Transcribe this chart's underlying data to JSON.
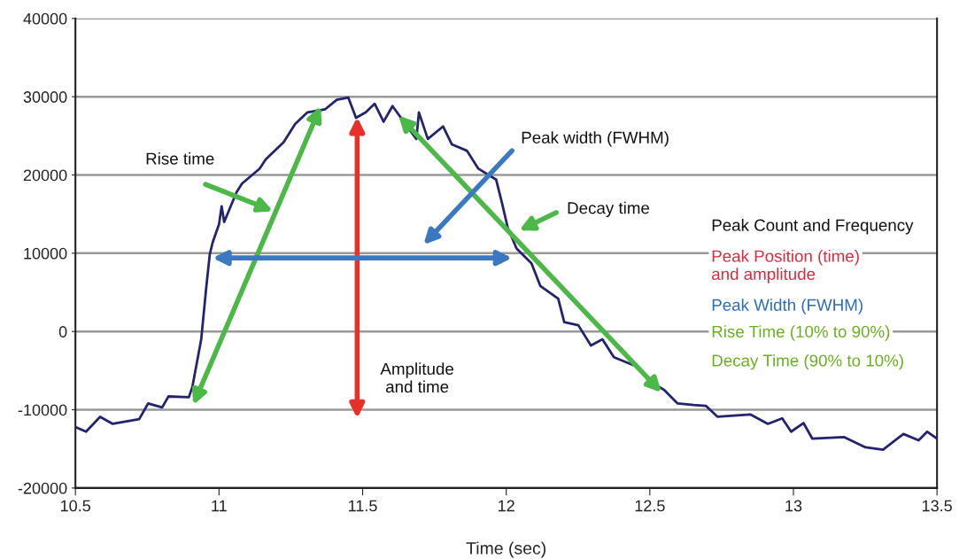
{
  "chart_data": {
    "type": "line",
    "xlabel": "Time (sec)",
    "x": [
      10.5,
      10.537,
      10.586,
      10.63,
      10.722,
      10.753,
      10.802,
      10.824,
      10.895,
      10.907,
      10.938,
      10.956,
      10.968,
      10.978,
      11.0,
      11.009,
      11.018,
      11.061,
      11.08,
      11.141,
      11.163,
      11.225,
      11.265,
      11.308,
      11.37,
      11.41,
      11.45,
      11.477,
      11.511,
      11.542,
      11.573,
      11.604,
      11.687,
      11.696,
      11.727,
      11.78,
      11.811,
      11.863,
      11.903,
      11.965,
      11.986,
      12.005,
      12.036,
      12.088,
      12.119,
      12.181,
      12.202,
      12.251,
      12.295,
      12.335,
      12.375,
      12.449,
      12.498,
      12.551,
      12.597,
      12.652,
      12.695,
      12.736,
      12.85,
      12.911,
      12.961,
      12.992,
      13.035,
      13.066,
      13.177,
      13.251,
      13.312,
      13.383,
      13.436,
      13.466,
      13.5
    ],
    "series": [
      {
        "color": "#23236e",
        "values": [
          -12200,
          -12800,
          -10900,
          -11800,
          -11200,
          -9200,
          -9700,
          -8300,
          -8400,
          -7100,
          -1000,
          5800,
          9900,
          11400,
          13700,
          16000,
          14000,
          17800,
          18900,
          20800,
          22000,
          24200,
          26500,
          28000,
          28400,
          29600,
          29900,
          27300,
          28000,
          29100,
          26800,
          28800,
          24600,
          28000,
          24600,
          26200,
          23900,
          23100,
          20800,
          19400,
          16300,
          13300,
          10600,
          8700,
          5800,
          4200,
          1200,
          800,
          -1800,
          -1000,
          -3300,
          -4400,
          -6300,
          -7500,
          -9200,
          -9400,
          -9500,
          -10900,
          -10600,
          -11800,
          -11100,
          -12800,
          -11700,
          -13700,
          -13500,
          -14800,
          -15100,
          -13100,
          -13900,
          -12800,
          -13700
        ]
      }
    ],
    "xlim": [
      10.5,
      13.5
    ],
    "xticks": [
      10.5,
      11,
      11.5,
      12,
      12.5,
      13,
      13.5
    ],
    "ylim": [
      -20000,
      40000
    ],
    "yticks": [
      -20000,
      -10000,
      0,
      10000,
      20000,
      30000,
      40000
    ],
    "grid": "y",
    "marker": "none",
    "line_style": "solid",
    "annotations": [
      "Rise time",
      "Peak width (FWHM)",
      "Decay time",
      "Amplitude\nand time",
      "Peak Count and Frequency",
      "Peak Position (time)\nand amplitude",
      "Peak Width (FWHM)",
      "Rise Time (10% to 90%)",
      "Decay Time (90% to 10%)"
    ]
  }
}
